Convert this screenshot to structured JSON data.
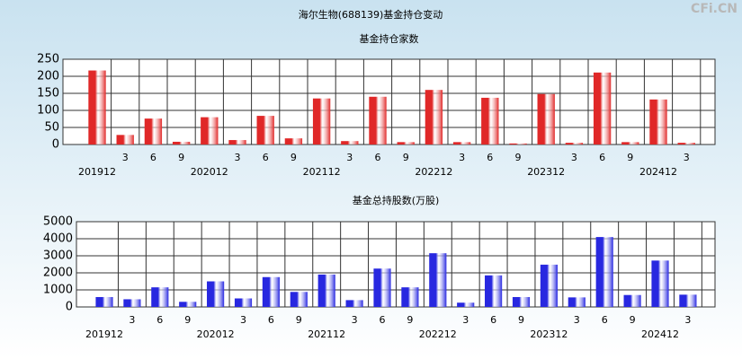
{
  "header": {
    "title": "海尔生物(688139)基金持仓变动",
    "watermark": "CFi.CN"
  },
  "chart_data": [
    {
      "type": "bar",
      "title": "基金持仓家数",
      "categories": [
        "201912",
        "3",
        "6",
        "9",
        "202012",
        "3",
        "6",
        "9",
        "202112",
        "3",
        "6",
        "9",
        "202212",
        "3",
        "6",
        "9",
        "202312",
        "3",
        "6",
        "9",
        "202412",
        "3"
      ],
      "values": [
        217,
        28,
        76,
        8,
        80,
        13,
        84,
        18,
        135,
        10,
        140,
        7,
        160,
        7,
        137,
        3,
        148,
        5,
        211,
        7,
        132,
        5
      ],
      "color": "#e02828",
      "ylim": [
        0,
        250
      ],
      "yticks": [
        0,
        50,
        100,
        150,
        200,
        250
      ],
      "grid": true
    },
    {
      "type": "bar",
      "title": "基金总持股数(万股)",
      "categories": [
        "201912",
        "3",
        "6",
        "9",
        "202012",
        "3",
        "6",
        "9",
        "202112",
        "3",
        "6",
        "9",
        "202212",
        "3",
        "6",
        "9",
        "202312",
        "3",
        "6",
        "9",
        "202412",
        "3"
      ],
      "values": [
        580,
        450,
        1150,
        300,
        1500,
        500,
        1750,
        880,
        1900,
        400,
        2250,
        1150,
        3150,
        250,
        1850,
        580,
        2480,
        560,
        4100,
        700,
        2720,
        720
      ],
      "color": "#2828e0",
      "ylim": [
        0,
        5000
      ],
      "yticks": [
        0,
        1000,
        2000,
        3000,
        4000,
        5000
      ],
      "grid": true
    }
  ]
}
